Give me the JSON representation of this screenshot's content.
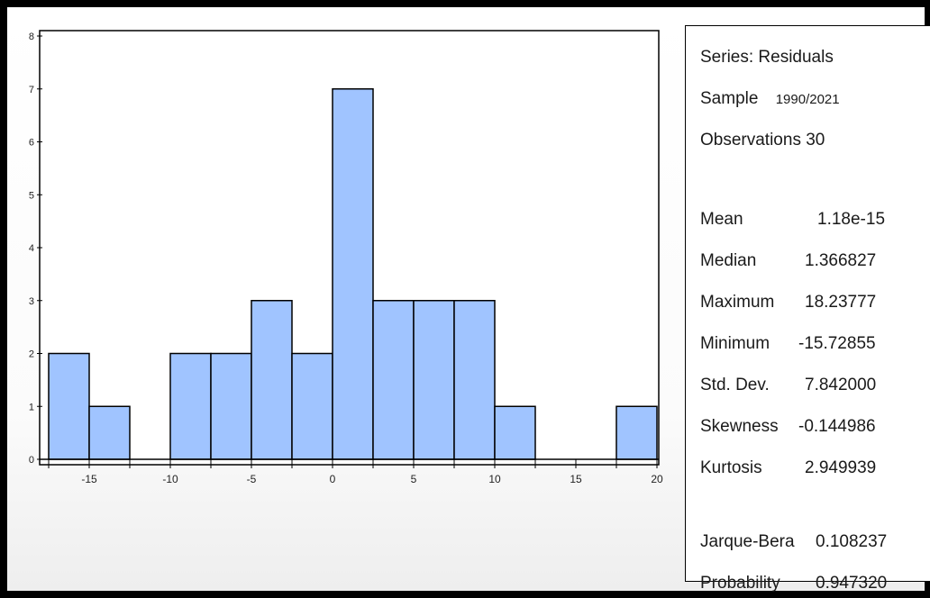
{
  "chart_data": {
    "type": "bar",
    "subtype": "histogram",
    "bin_width": 2.5,
    "bins": [
      {
        "x0": -17.5,
        "x1": -15.0,
        "count": 2
      },
      {
        "x0": -15.0,
        "x1": -12.5,
        "count": 1
      },
      {
        "x0": -12.5,
        "x1": -10.0,
        "count": 0
      },
      {
        "x0": -10.0,
        "x1": -7.5,
        "count": 2
      },
      {
        "x0": -7.5,
        "x1": -5.0,
        "count": 2
      },
      {
        "x0": -5.0,
        "x1": -2.5,
        "count": 3
      },
      {
        "x0": -2.5,
        "x1": 0.0,
        "count": 2
      },
      {
        "x0": 0.0,
        "x1": 2.5,
        "count": 7
      },
      {
        "x0": 2.5,
        "x1": 5.0,
        "count": 3
      },
      {
        "x0": 5.0,
        "x1": 7.5,
        "count": 3
      },
      {
        "x0": 7.5,
        "x1": 10.0,
        "count": 3
      },
      {
        "x0": 10.0,
        "x1": 12.5,
        "count": 1
      },
      {
        "x0": 12.5,
        "x1": 15.0,
        "count": 0
      },
      {
        "x0": 15.0,
        "x1": 17.5,
        "count": 0
      },
      {
        "x0": 17.5,
        "x1": 20.0,
        "count": 1
      }
    ],
    "xlim": [
      -17.5,
      20.0
    ],
    "ylim": [
      0,
      8
    ],
    "xticks": [
      -15,
      -10,
      -5,
      0,
      5,
      10,
      15,
      20
    ],
    "yticks": [
      0,
      1,
      2,
      3,
      4,
      5,
      6,
      7,
      8
    ],
    "bar_color": "#a0c4ff",
    "bar_edge_color": "#000000",
    "grid": false,
    "title": "",
    "xlabel": "",
    "ylabel": ""
  },
  "stats": {
    "series_label": "Series: Residuals",
    "sample_label": "Sample",
    "sample_value": "1990/2021",
    "observations_label": "Observations 30",
    "rows": [
      {
        "label": "Mean",
        "value": "1.18e-15"
      },
      {
        "label": "Median",
        "value": "1.366827"
      },
      {
        "label": "Maximum",
        "value": "18.23777"
      },
      {
        "label": "Minimum",
        "value": "-15.72855"
      },
      {
        "label": "Std. Dev.",
        "value": "7.842000"
      },
      {
        "label": "Skewness",
        "value": "-0.144986"
      },
      {
        "label": "Kurtosis",
        "value": "2.949939"
      }
    ],
    "jb_rows": [
      {
        "label": "Jarque-Bera",
        "value": "0.108237"
      },
      {
        "label": "Probability",
        "value": "0.947320"
      }
    ]
  }
}
